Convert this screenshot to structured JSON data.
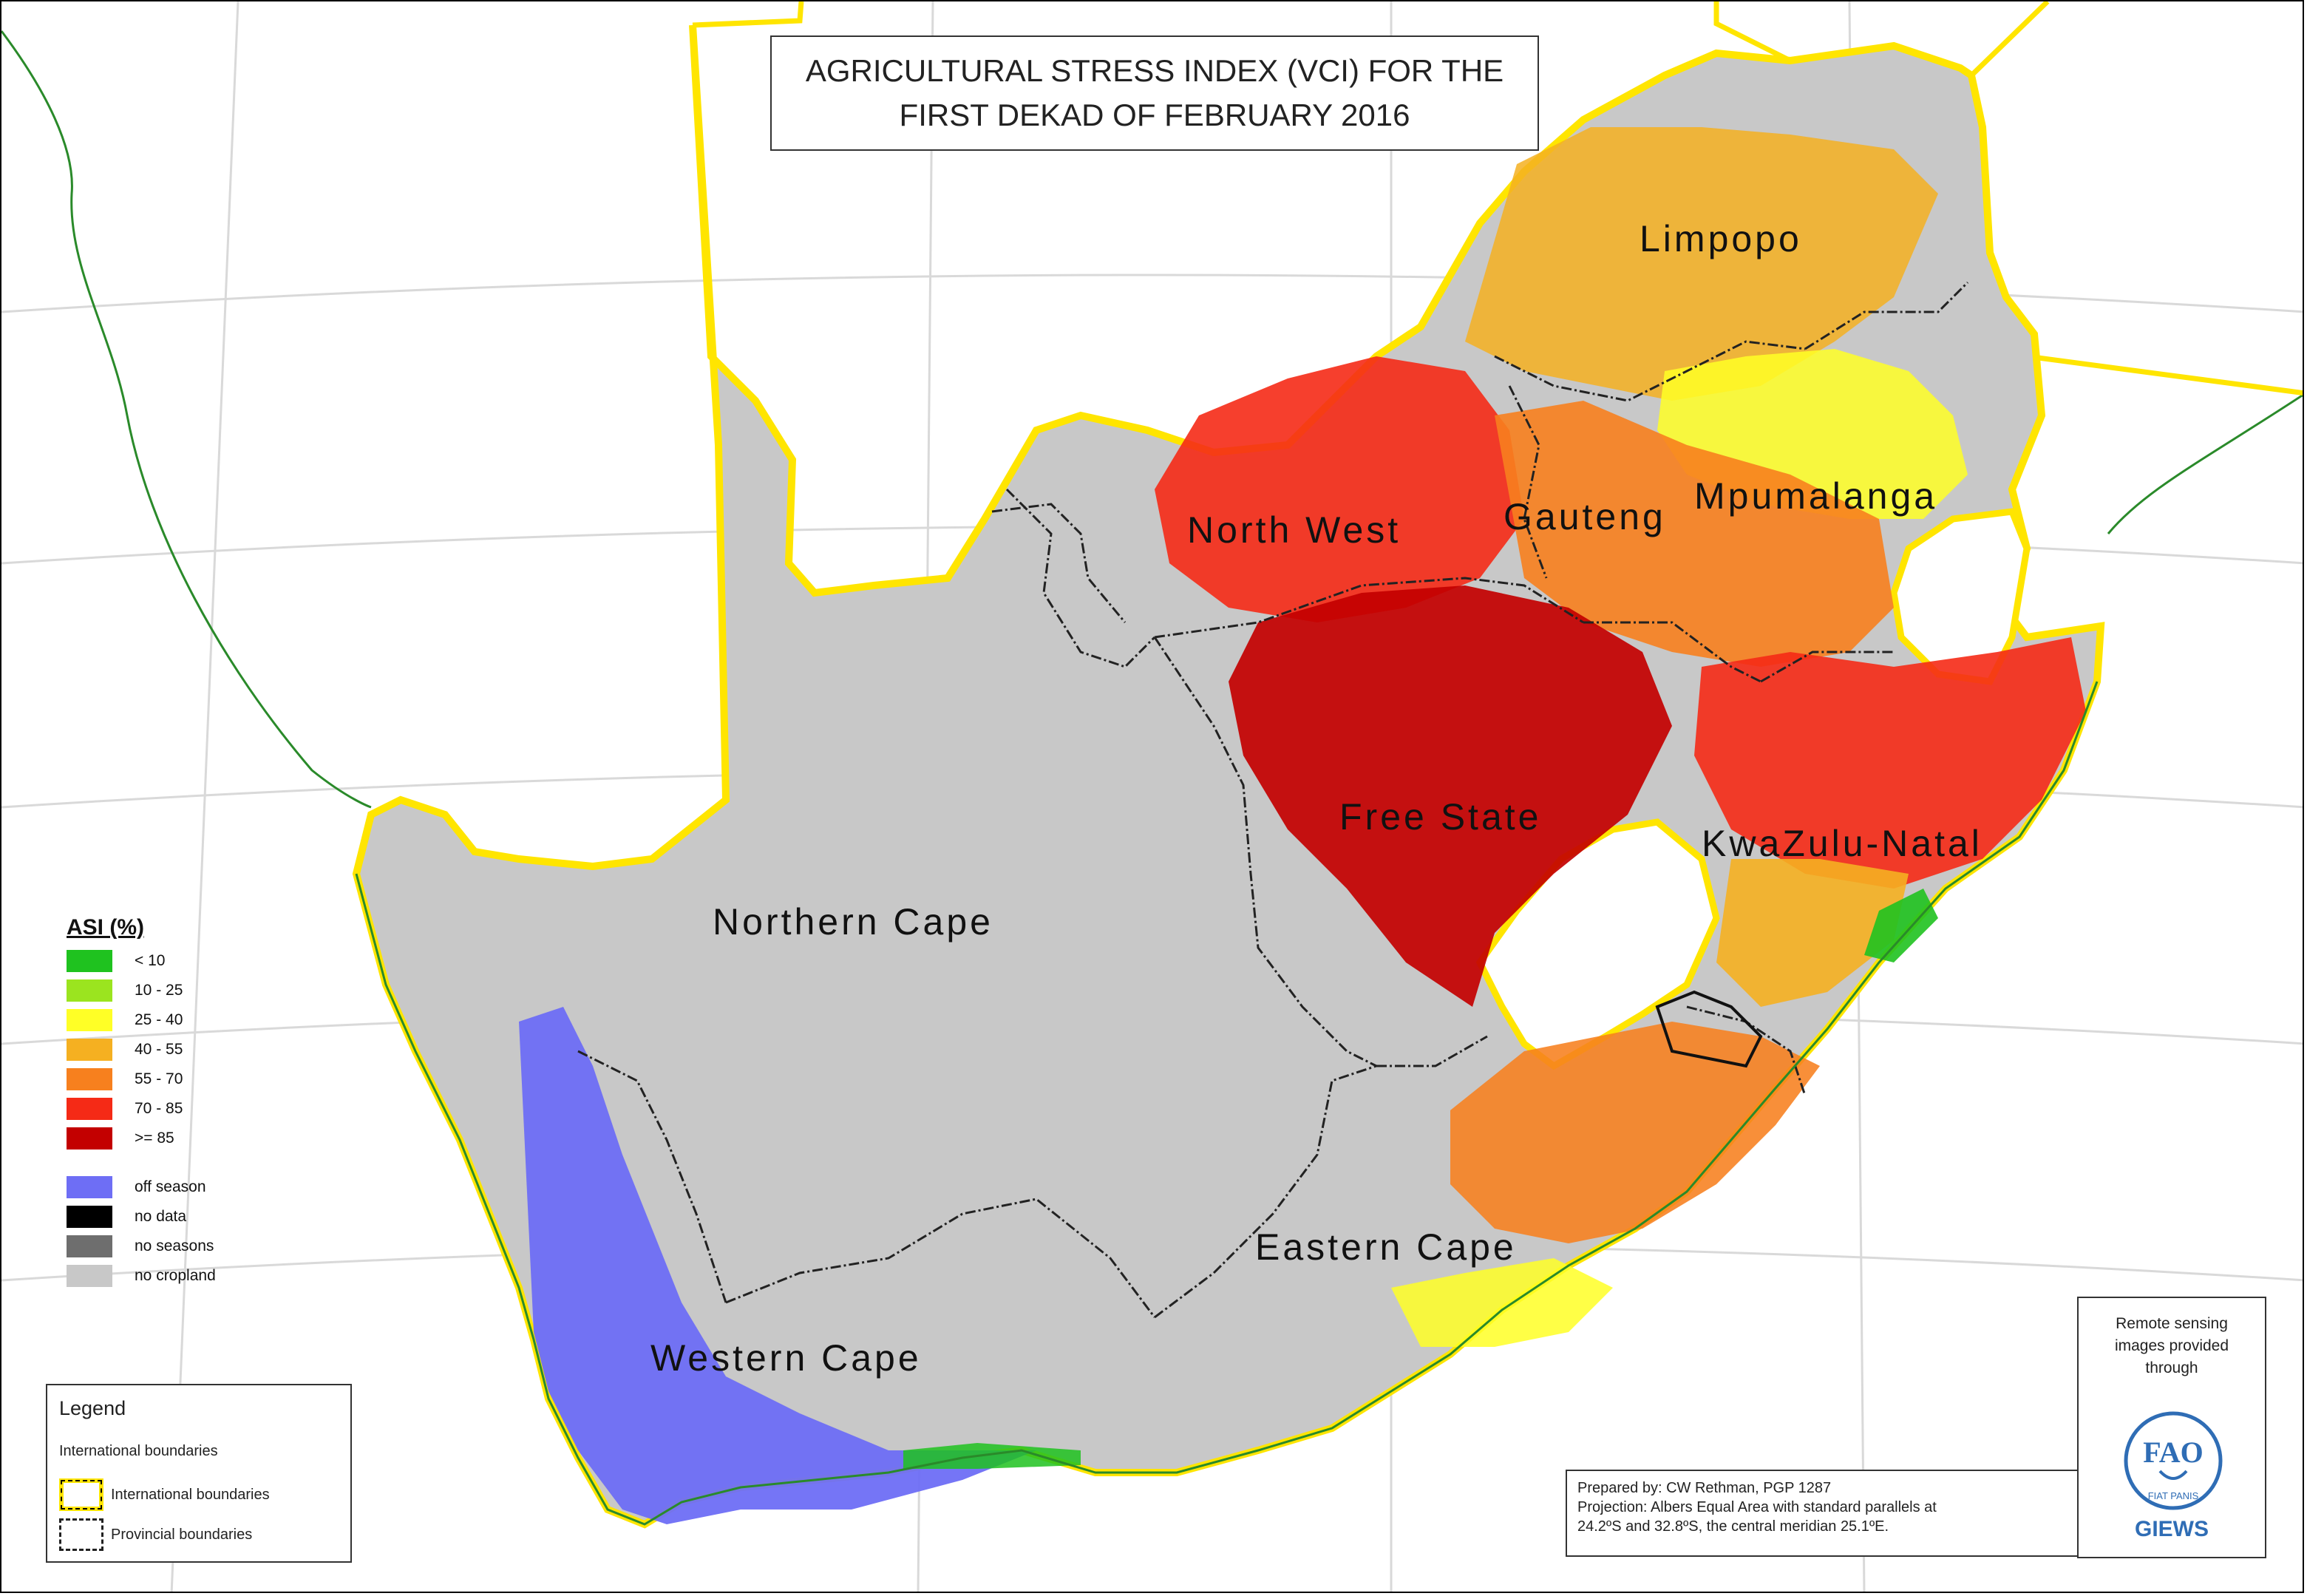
{
  "title": {
    "line1": "AGRICULTURAL STRESS INDEX (VCI) FOR THE",
    "line2": "FIRST DEKAD OF FEBRUARY 2016"
  },
  "provinces": [
    {
      "name": "Limpopo"
    },
    {
      "name": "Mpumalanga"
    },
    {
      "name": "North West"
    },
    {
      "name": "Gauteng"
    },
    {
      "name": "Free State"
    },
    {
      "name": "KwaZulu-Natal"
    },
    {
      "name": "Northern Cape"
    },
    {
      "name": "Eastern Cape"
    },
    {
      "name": "Western Cape"
    }
  ],
  "asi_legend": {
    "title": "ASI (%)",
    "classes": [
      {
        "label": "< 10",
        "color": "#1fc21f"
      },
      {
        "label": "10 - 25",
        "color": "#9be41f"
      },
      {
        "label": "25 - 40",
        "color": "#ffff26"
      },
      {
        "label": "40 - 55",
        "color": "#f5b021"
      },
      {
        "label": "55 - 70",
        "color": "#f7801e"
      },
      {
        "label": "70 - 85",
        "color": "#f52a16"
      },
      {
        "label": ">= 85",
        "color": "#c30000"
      }
    ],
    "other": [
      {
        "label": "off season",
        "color": "#6e6ef5"
      },
      {
        "label": "no data",
        "color": "#000000"
      },
      {
        "label": "no seasons",
        "color": "#6e6e6e"
      },
      {
        "label": "no cropland",
        "color": "#c8c8c8"
      }
    ]
  },
  "boundary_legend": {
    "title": "Legend",
    "subtitle": "International boundaries",
    "items": [
      {
        "label": "International boundaries"
      },
      {
        "label": "Provincial boundaries"
      }
    ]
  },
  "credits": {
    "line1": "Prepared by: CW Rethman, PGP 1287",
    "line2": "Projection: Albers Equal Area with standard parallels at",
    "line3": "24.2ºS  and 32.8ºS, the central meridian 25.1ºE."
  },
  "giews": {
    "line1": "Remote sensing",
    "line2": "images provided",
    "line3": "through",
    "logo_text": "GIEWS",
    "fao_letters": "FAO",
    "motto": "FIAT PANIS"
  },
  "colors": {
    "land": "#c8c8c8",
    "intl_boundary": "#ffe500",
    "coast": "#2a8a2a",
    "graticule": "#d9d9d9"
  }
}
